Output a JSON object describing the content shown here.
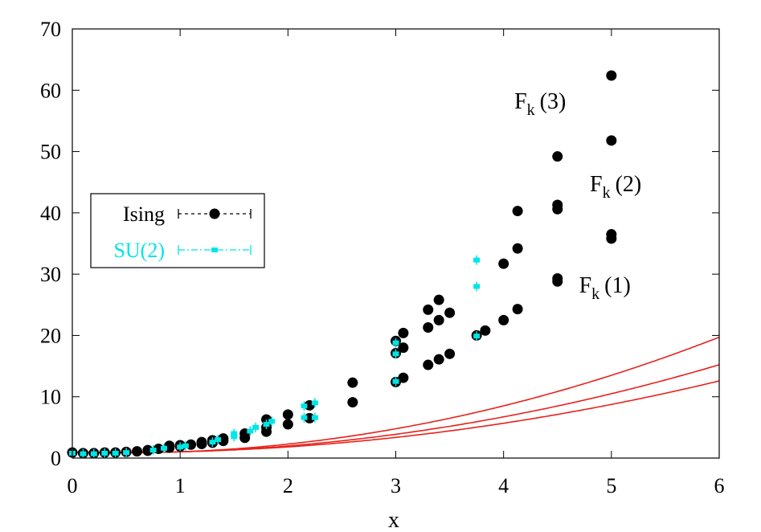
{
  "chart_data": {
    "type": "scatter",
    "title": "",
    "xlabel": "x",
    "ylabel": "",
    "xlim": [
      0,
      6
    ],
    "ylim": [
      0,
      70
    ],
    "x_ticks": [
      "0",
      "1",
      "2",
      "3",
      "4",
      "5",
      "6"
    ],
    "y_ticks": [
      "0",
      "10",
      "20",
      "30",
      "40",
      "50",
      "60",
      "70"
    ],
    "grid": false,
    "legend_position": "left",
    "colors": {
      "curve": "#e8221c",
      "ising": "#000000",
      "su2": "#00e5e5"
    },
    "curves": [
      {
        "label_main": "F",
        "label_sub": "k",
        "label_arg": "(1)",
        "coef": [
          1.0,
          -0.35,
          0.38
        ]
      },
      {
        "label_main": "F",
        "label_sub": "k",
        "label_arg": "(2)",
        "coef": [
          1.0,
          -0.45,
          0.47
        ]
      },
      {
        "label_main": "F",
        "label_sub": "k",
        "label_arg": "(3)",
        "coef": [
          1.0,
          -0.6,
          0.62
        ]
      }
    ],
    "series": [
      {
        "name": "Ising",
        "marker": "circle",
        "points": [
          [
            0.0,
            0.9
          ],
          [
            0.1,
            0.8
          ],
          [
            0.2,
            0.8
          ],
          [
            0.3,
            0.9
          ],
          [
            0.4,
            0.9
          ],
          [
            0.5,
            1.0
          ],
          [
            0.6,
            1.1
          ],
          [
            0.7,
            1.2
          ],
          [
            0.7,
            1.3
          ],
          [
            0.8,
            1.5
          ],
          [
            0.9,
            1.7
          ],
          [
            0.9,
            2.0
          ],
          [
            1.0,
            1.9
          ],
          [
            1.0,
            2.1
          ],
          [
            1.1,
            2.2
          ],
          [
            1.2,
            2.3
          ],
          [
            1.2,
            2.6
          ],
          [
            1.3,
            2.5
          ],
          [
            1.3,
            2.9
          ],
          [
            1.4,
            2.8
          ],
          [
            1.4,
            3.2
          ],
          [
            1.6,
            3.3
          ],
          [
            1.6,
            4.0
          ],
          [
            1.8,
            4.3
          ],
          [
            1.8,
            5.0
          ],
          [
            1.8,
            6.3
          ],
          [
            2.0,
            5.5
          ],
          [
            2.0,
            7.1
          ],
          [
            2.2,
            6.5
          ],
          [
            2.2,
            8.6
          ],
          [
            2.6,
            9.1
          ],
          [
            2.6,
            12.3
          ],
          [
            3.0,
            12.4
          ],
          [
            3.0,
            17.1
          ],
          [
            3.0,
            19.1
          ],
          [
            3.07,
            13.1
          ],
          [
            3.07,
            18.0
          ],
          [
            3.07,
            20.4
          ],
          [
            3.3,
            15.2
          ],
          [
            3.3,
            21.3
          ],
          [
            3.3,
            24.2
          ],
          [
            3.4,
            16.1
          ],
          [
            3.4,
            22.5
          ],
          [
            3.4,
            25.8
          ],
          [
            3.5,
            17.0
          ],
          [
            3.5,
            23.7
          ],
          [
            3.75,
            20.0
          ],
          [
            3.83,
            20.8
          ],
          [
            4.0,
            22.5
          ],
          [
            4.0,
            31.7
          ],
          [
            4.13,
            24.3
          ],
          [
            4.13,
            34.2
          ],
          [
            4.13,
            40.3
          ],
          [
            4.5,
            28.8
          ],
          [
            4.5,
            29.3
          ],
          [
            4.5,
            40.6
          ],
          [
            4.5,
            41.3
          ],
          [
            4.5,
            49.2
          ],
          [
            5.0,
            35.8
          ],
          [
            5.0,
            36.5
          ],
          [
            5.0,
            51.8
          ],
          [
            5.0,
            62.4
          ]
        ]
      },
      {
        "name": "SU(2)",
        "marker": "square",
        "points": [
          [
            0.0,
            0.8
          ],
          [
            0.1,
            0.7
          ],
          [
            0.2,
            0.7
          ],
          [
            0.3,
            0.8
          ],
          [
            0.4,
            0.8
          ],
          [
            0.5,
            0.9
          ],
          [
            0.75,
            1.3
          ],
          [
            0.85,
            1.6
          ],
          [
            1.0,
            1.8
          ],
          [
            1.05,
            2.0
          ],
          [
            1.3,
            2.6
          ],
          [
            1.35,
            3.0
          ],
          [
            1.5,
            3.5
          ],
          [
            1.5,
            4.0
          ],
          [
            1.65,
            4.4
          ],
          [
            1.7,
            5.0
          ],
          [
            1.8,
            5.5
          ],
          [
            1.85,
            6.0
          ],
          [
            2.15,
            6.6
          ],
          [
            2.15,
            8.5
          ],
          [
            2.25,
            6.6
          ],
          [
            2.25,
            9.0
          ],
          [
            3.0,
            12.5
          ],
          [
            3.0,
            17.0
          ],
          [
            3.0,
            18.8
          ],
          [
            3.75,
            19.9
          ],
          [
            3.75,
            28.0
          ],
          [
            3.75,
            32.3
          ]
        ]
      }
    ]
  }
}
